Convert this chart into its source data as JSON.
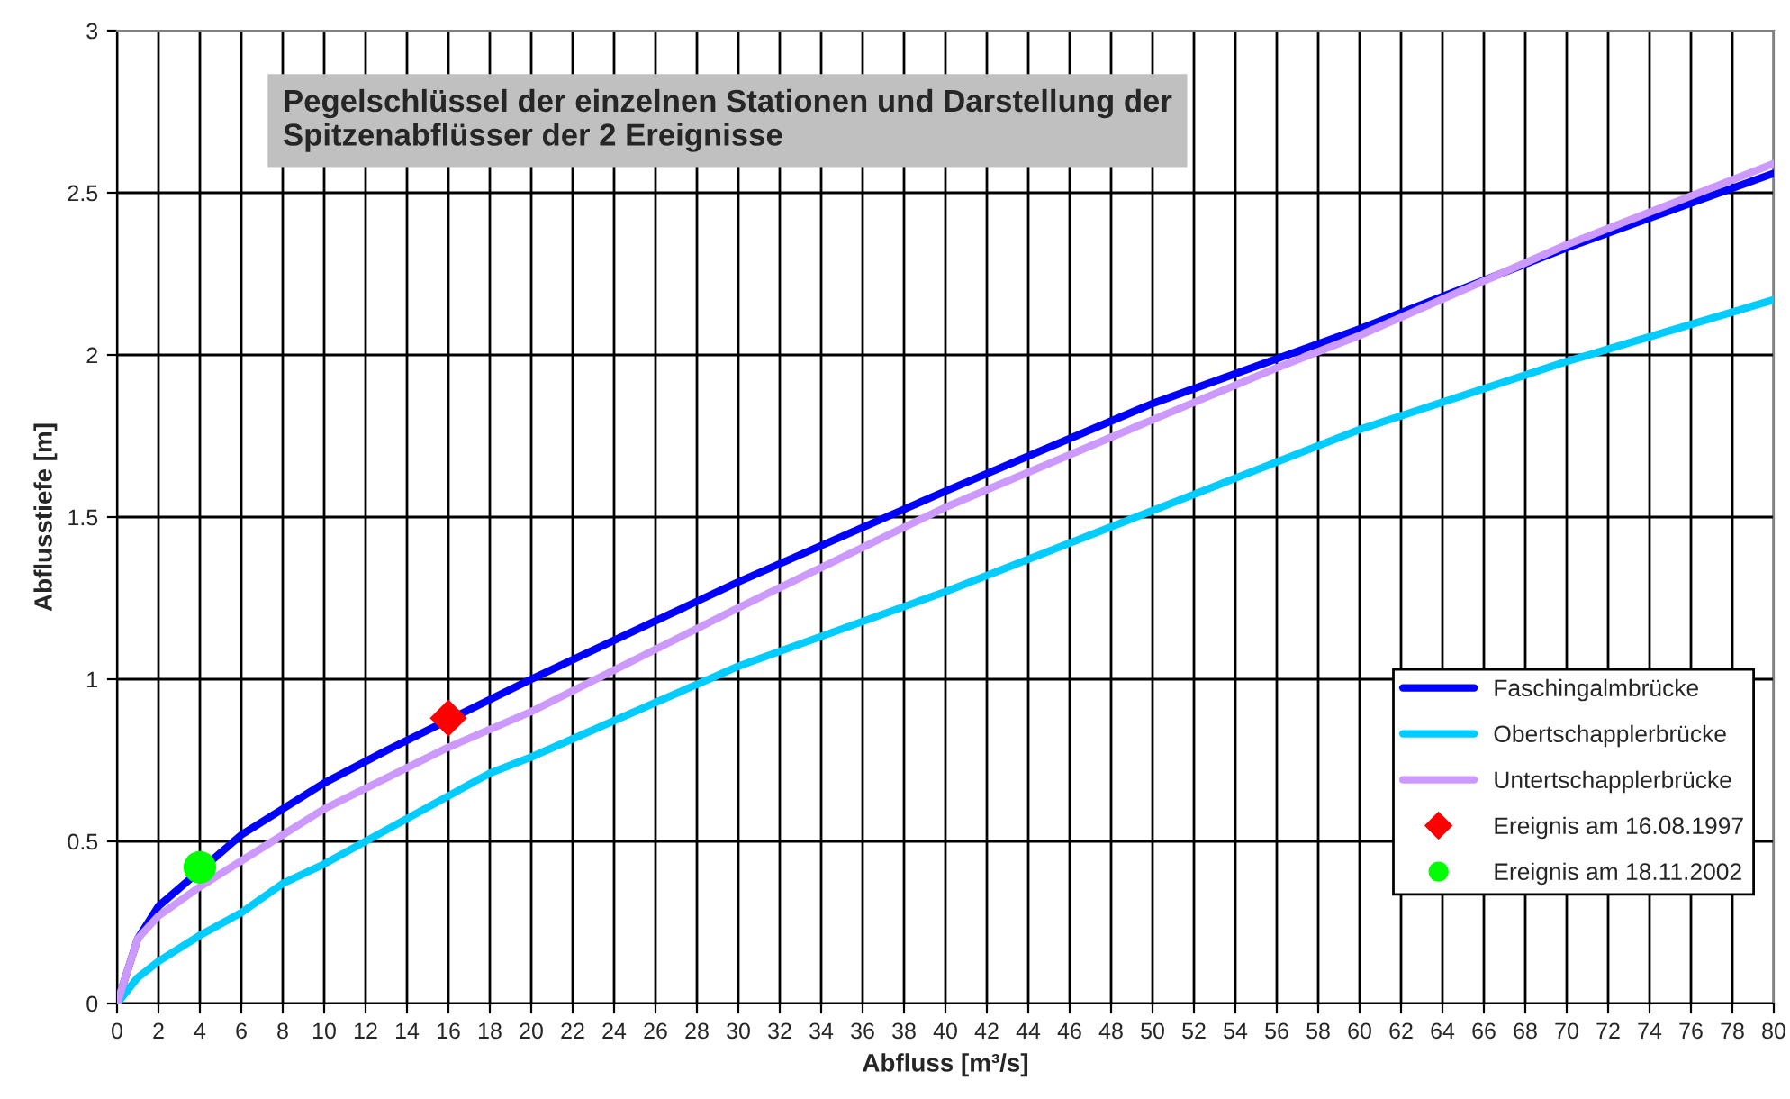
{
  "chart_data": {
    "type": "line",
    "title": "Pegelschlüssel der einzelnen Stationen und Darstellung der\nSpitzenabflüsser der 2 Ereignisse",
    "xlabel": "Abfluss [m³/s]",
    "ylabel": "Abflusstiefe [m]",
    "series": [
      {
        "name": "Faschingalmbrücke",
        "color": "#0000ff",
        "x": [
          0,
          1,
          2,
          6,
          10,
          13,
          20,
          30,
          40,
          50,
          60,
          70,
          80
        ],
        "values": [
          0,
          0.2,
          0.3,
          0.52,
          0.68,
          0.78,
          1.0,
          1.3,
          1.58,
          1.85,
          2.08,
          2.33,
          2.56
        ]
      },
      {
        "name": "Obertschapplerbrücke",
        "color": "#00ccff",
        "x": [
          0,
          1,
          2,
          4,
          6,
          8,
          10,
          16,
          18,
          20,
          30,
          40,
          50,
          60,
          70,
          80
        ],
        "values": [
          0,
          0.08,
          0.13,
          0.21,
          0.28,
          0.37,
          0.43,
          0.64,
          0.71,
          0.76,
          1.04,
          1.27,
          1.52,
          1.77,
          1.98,
          2.17
        ]
      },
      {
        "name": "Untertschapplerbrücke",
        "color": "#cc99ff",
        "x": [
          0,
          1,
          2,
          4,
          6,
          10,
          16,
          20,
          30,
          40,
          50,
          56,
          60,
          70,
          80
        ],
        "values": [
          0,
          0.2,
          0.27,
          0.36,
          0.44,
          0.6,
          0.79,
          0.9,
          1.22,
          1.53,
          1.8,
          1.96,
          2.06,
          2.34,
          2.59
        ]
      },
      {
        "name": "Ereignis am 16.08.1997",
        "type": "scatter",
        "marker": "diamond",
        "color": "#ff0000",
        "x": [
          16
        ],
        "values": [
          0.88
        ]
      },
      {
        "name": "Ereignis am 18.11.2002",
        "type": "scatter",
        "marker": "circle",
        "color": "#00ff00",
        "x": [
          4
        ],
        "values": [
          0.42
        ]
      }
    ],
    "xlim": [
      0,
      80
    ],
    "xticks": [
      0,
      2,
      4,
      6,
      8,
      10,
      12,
      14,
      16,
      18,
      20,
      22,
      24,
      26,
      28,
      30,
      32,
      34,
      36,
      38,
      40,
      42,
      44,
      46,
      48,
      50,
      52,
      54,
      56,
      58,
      60,
      62,
      64,
      66,
      68,
      70,
      72,
      74,
      76,
      78,
      80
    ],
    "ylim": [
      0,
      3
    ],
    "yticks": [
      0,
      0.5,
      1,
      1.5,
      2,
      2.5,
      3
    ],
    "grid": true,
    "legend": "bottom right",
    "marker": "none",
    "line_style": "solid"
  }
}
